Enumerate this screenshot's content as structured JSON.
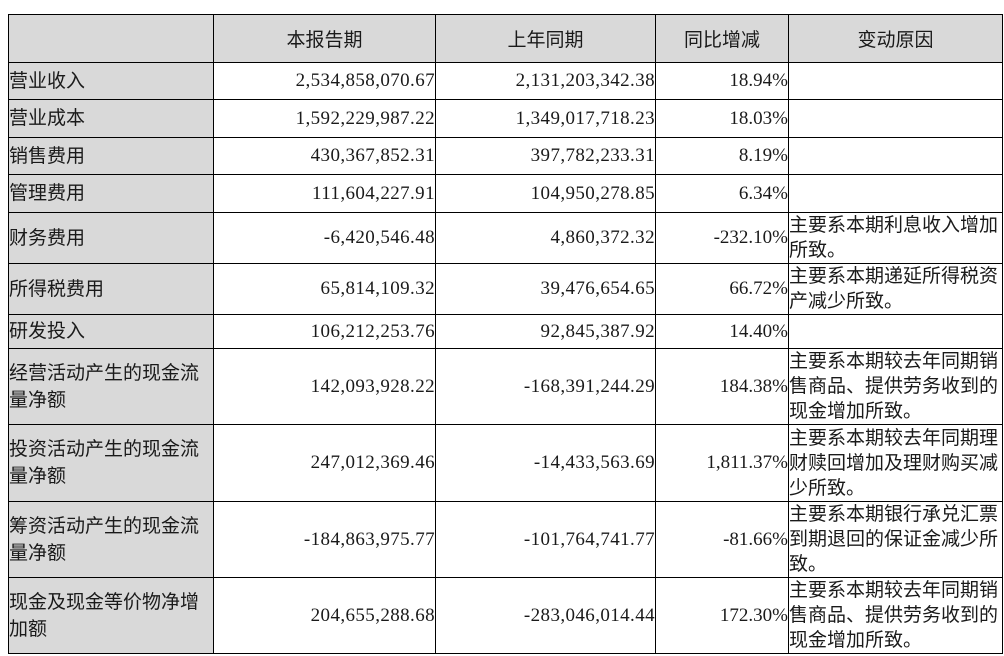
{
  "table": {
    "headers": {
      "label": "",
      "current": "本报告期",
      "prior": "上年同期",
      "change": "同比增减",
      "reason": "变动原因"
    },
    "rows": [
      {
        "label": "营业收入",
        "current": "2,534,858,070.67",
        "prior": "2,131,203,342.38",
        "change": "18.94%",
        "reason": ""
      },
      {
        "label": "营业成本",
        "current": "1,592,229,987.22",
        "prior": "1,349,017,718.23",
        "change": "18.03%",
        "reason": ""
      },
      {
        "label": "销售费用",
        "current": "430,367,852.31",
        "prior": "397,782,233.31",
        "change": "8.19%",
        "reason": ""
      },
      {
        "label": "管理费用",
        "current": "111,604,227.91",
        "prior": "104,950,278.85",
        "change": "6.34%",
        "reason": ""
      },
      {
        "label": "财务费用",
        "current": "-6,420,546.48",
        "prior": "4,860,372.32",
        "change": "-232.10%",
        "reason": "主要系本期利息收入增加所致。"
      },
      {
        "label": "所得税费用",
        "current": "65,814,109.32",
        "prior": "39,476,654.65",
        "change": "66.72%",
        "reason": "主要系本期递延所得税资产减少所致。"
      },
      {
        "label": "研发投入",
        "current": "106,212,253.76",
        "prior": "92,845,387.92",
        "change": "14.40%",
        "reason": ""
      },
      {
        "label": "经营活动产生的现金流量净额",
        "current": "142,093,928.22",
        "prior": "-168,391,244.29",
        "change": "184.38%",
        "reason": "主要系本期较去年同期销售商品、提供劳务收到的现金增加所致。"
      },
      {
        "label": "投资活动产生的现金流量净额",
        "current": "247,012,369.46",
        "prior": "-14,433,563.69",
        "change": "1,811.37%",
        "reason": "主要系本期较去年同期理财赎回增加及理财购买减少所致。"
      },
      {
        "label": "筹资活动产生的现金流量净额",
        "current": "-184,863,975.77",
        "prior": "-101,764,741.77",
        "change": "-81.66%",
        "reason": "主要系本期银行承兑汇票到期退回的保证金减少所致。"
      },
      {
        "label": "现金及现金等价物净增加额",
        "current": "204,655,288.68",
        "prior": "-283,046,014.44",
        "change": "172.30%",
        "reason": "主要系本期较去年同期销售商品、提供劳务收到的现金增加所致。"
      }
    ],
    "colors": {
      "header_bg": "#d9d9d9",
      "label_bg": "#d9d9d9",
      "border": "#000000",
      "text": "#1a1a1a"
    }
  }
}
